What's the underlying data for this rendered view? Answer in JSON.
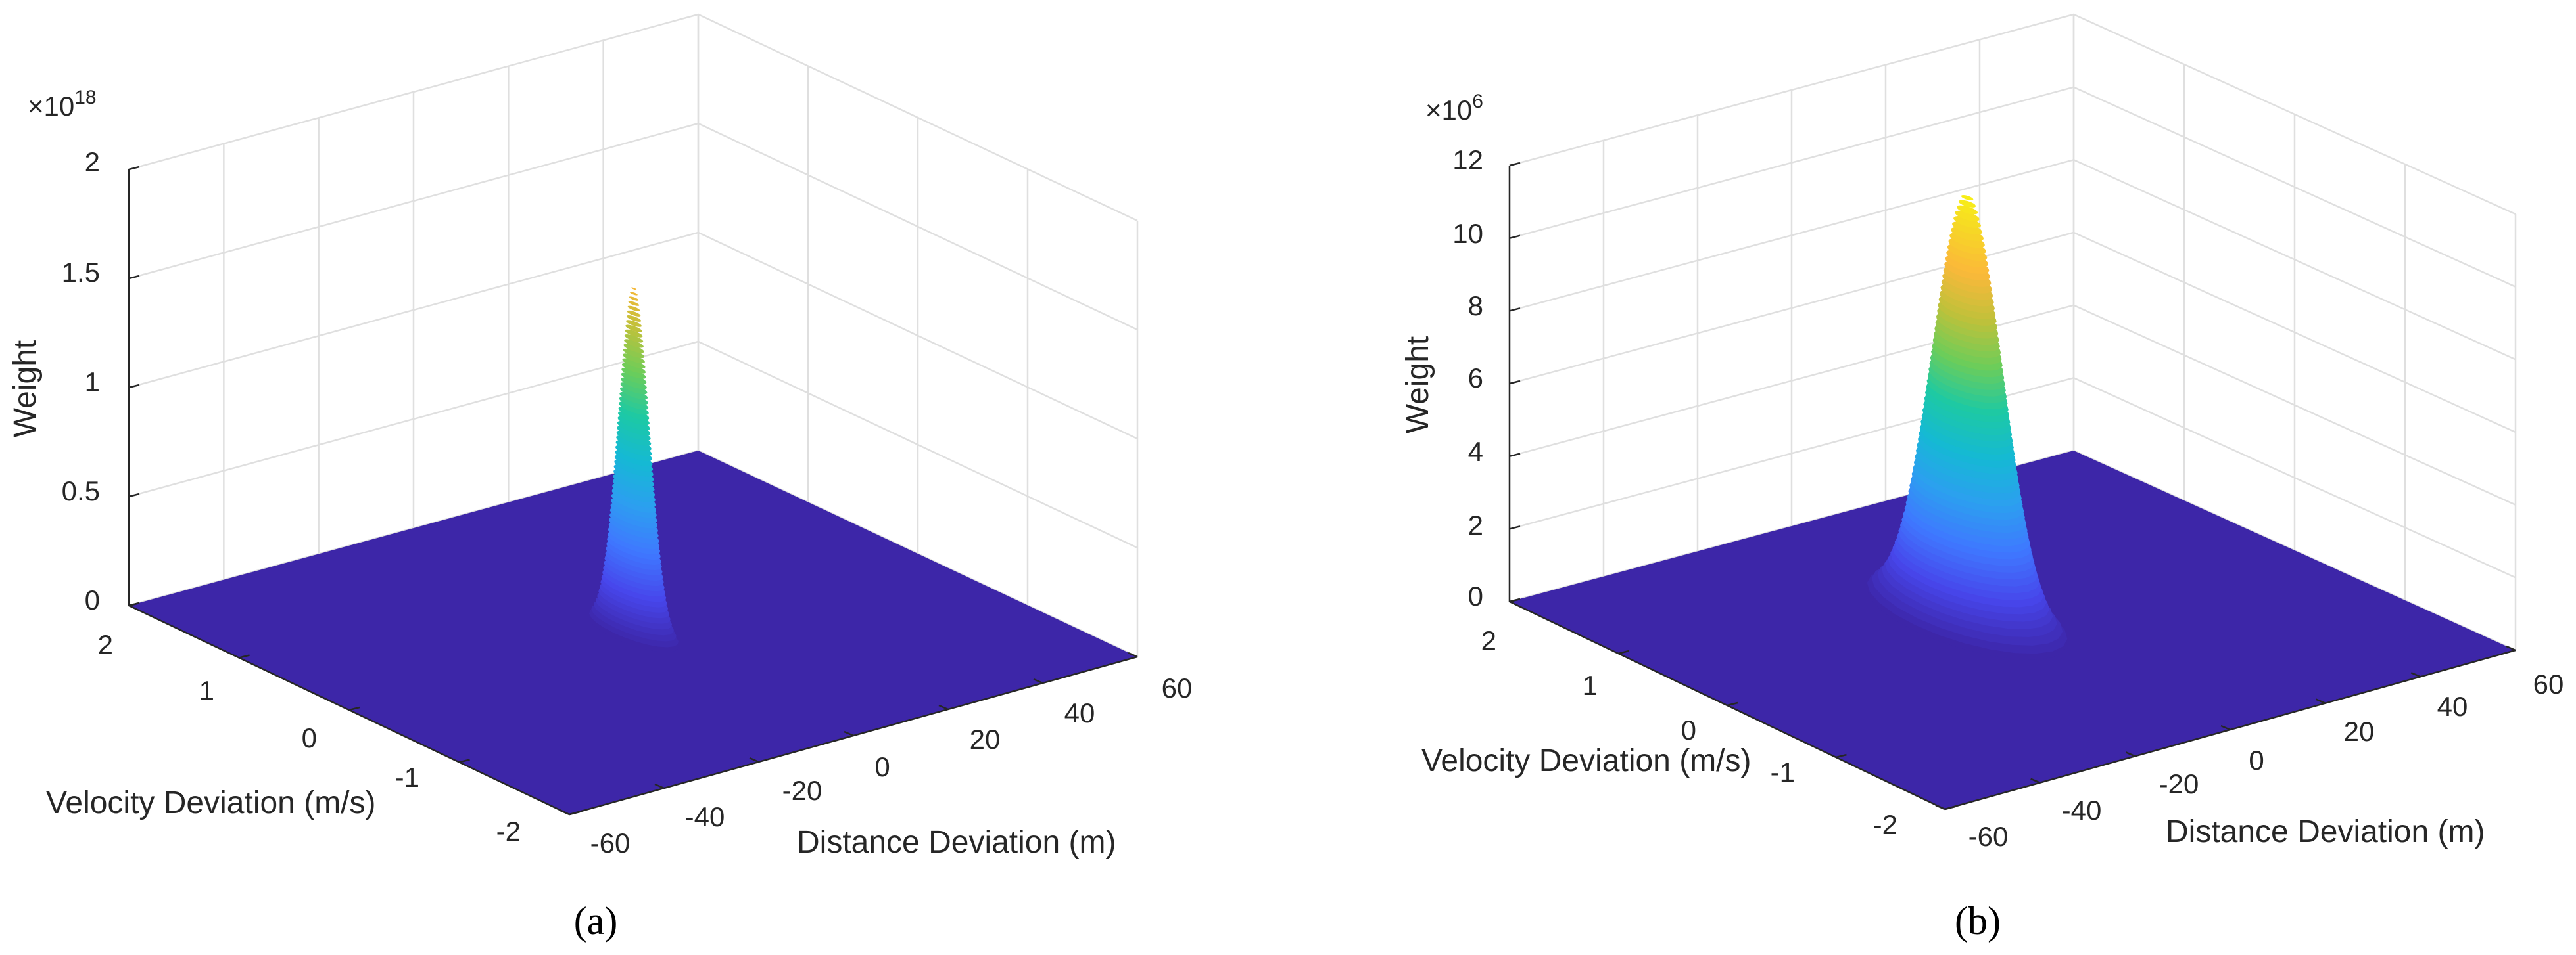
{
  "colors": {
    "floor": "#3d26a8",
    "grid": "#dfdfdf",
    "axis": "#262626",
    "colormap": [
      "#3d26a8",
      "#4746eb",
      "#3f78ff",
      "#2c9ff0",
      "#15b9d4",
      "#1dc9a4",
      "#6dcd59",
      "#c0c13a",
      "#fbb83a",
      "#f6da24",
      "#f9fb0e"
    ]
  },
  "chart_data": [
    {
      "type": "surface3d",
      "caption": "(a)",
      "xlabel": "Distance Deviation (m)",
      "ylabel": "Velocity Deviation (m/s)",
      "zlabel": "Weight",
      "z_exponent_label": "×10",
      "z_exponent_power": "18",
      "xlim": [
        -60,
        60
      ],
      "ylim": [
        -2,
        2
      ],
      "zlim": [
        0,
        2
      ],
      "x_ticks": [
        "-60",
        "-40",
        "-20",
        "0",
        "20",
        "40",
        "60"
      ],
      "y_ticks": [
        "-2",
        "-1",
        "0",
        "1",
        "2"
      ],
      "z_ticks": [
        "0",
        "0.5",
        "1",
        "1.5",
        "2"
      ],
      "z_tick_values": [
        0,
        0.5,
        1,
        1.5,
        2
      ],
      "peak": {
        "x": 0,
        "y": 0,
        "z": 1.6,
        "sigma_x": 1.5,
        "sigma_y": 0.13
      },
      "grid": true
    },
    {
      "type": "surface3d",
      "caption": "(b)",
      "xlabel": "Distance Deviation (m)",
      "ylabel": "Velocity Deviation (m/s)",
      "zlabel": "Weight",
      "z_exponent_label": "×10",
      "z_exponent_power": "6",
      "xlim": [
        -60,
        60
      ],
      "ylim": [
        -2,
        2
      ],
      "zlim": [
        0,
        12
      ],
      "x_ticks": [
        "-60",
        "-40",
        "-20",
        "0",
        "20",
        "40",
        "60"
      ],
      "y_ticks": [
        "-2",
        "-1",
        "0",
        "1",
        "2"
      ],
      "z_ticks": [
        "0",
        "2",
        "4",
        "6",
        "8",
        "10",
        "12"
      ],
      "z_tick_values": [
        0,
        2,
        4,
        6,
        8,
        10,
        12
      ],
      "peak": {
        "x": -2,
        "y": 0.3,
        "z": 11.7,
        "sigma_x": 4,
        "sigma_y": 0.28
      },
      "grid": true
    }
  ]
}
